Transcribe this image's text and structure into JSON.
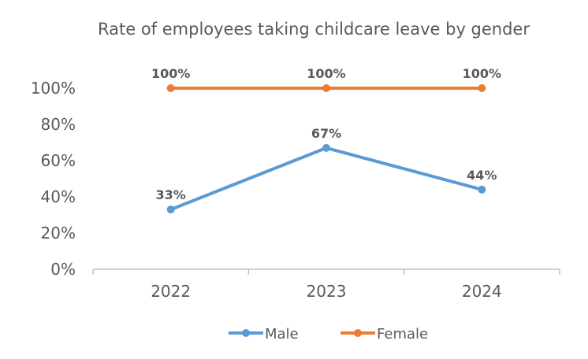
{
  "chart_data": {
    "type": "line",
    "title": "Rate of employees taking childcare leave by gender",
    "categories": [
      "2022",
      "2023",
      "2024"
    ],
    "y_ticks": [
      "0%",
      "20%",
      "40%",
      "60%",
      "80%",
      "100%"
    ],
    "ylim": [
      0,
      100
    ],
    "grid": false,
    "legend_position": "bottom",
    "series": [
      {
        "name": "Male",
        "values": [
          33,
          67,
          44
        ],
        "labels": [
          "33%",
          "67%",
          "44%"
        ],
        "color": "#5b9bd5"
      },
      {
        "name": "Female",
        "values": [
          100,
          100,
          100
        ],
        "labels": [
          "100%",
          "100%",
          "100%"
        ],
        "color": "#ed7d31"
      }
    ]
  }
}
